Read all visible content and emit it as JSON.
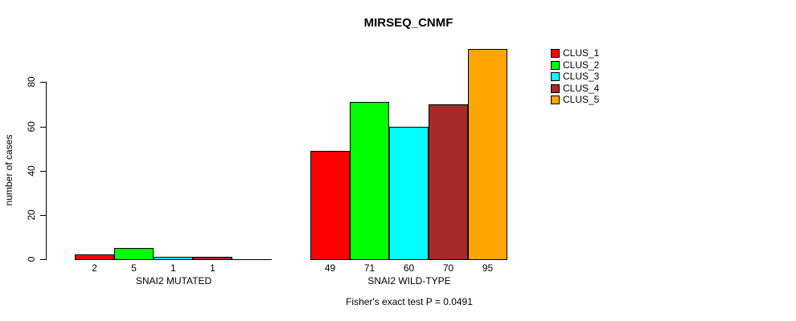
{
  "title": "MIRSEQ_CNMF",
  "y_axis_label": "number of cases",
  "footer_note": "Fisher's exact test P = 0.0491",
  "legend": {
    "position": "top-right",
    "items": [
      {
        "label": "CLUS_1",
        "color": "#FF0000"
      },
      {
        "label": "CLUS_2",
        "color": "#00FF00"
      },
      {
        "label": "CLUS_3",
        "color": "#00FFFF"
      },
      {
        "label": "CLUS_4",
        "color": "#A52A2A"
      },
      {
        "label": "CLUS_5",
        "color": "#FFA500"
      }
    ]
  },
  "chart_data": {
    "type": "bar",
    "title": "MIRSEQ_CNMF",
    "xlabel": "",
    "ylabel": "number of cases",
    "ylim": [
      0,
      95
    ],
    "yticks": [
      0,
      20,
      40,
      60,
      80
    ],
    "grid": false,
    "legend_position": "right-outside",
    "clusters": [
      "CLUS_1",
      "CLUS_2",
      "CLUS_3",
      "CLUS_4",
      "CLUS_5"
    ],
    "colors": [
      "#FF0000",
      "#00FF00",
      "#00FFFF",
      "#A52A2A",
      "#FFA500"
    ],
    "groups": [
      {
        "label": "SNAI2 MUTATED",
        "values": [
          2,
          5,
          1,
          1,
          0
        ],
        "bar_labels": [
          "2",
          "5",
          "1",
          "1",
          ""
        ]
      },
      {
        "label": "SNAI2 WILD-TYPE",
        "values": [
          49,
          71,
          60,
          70,
          95
        ],
        "bar_labels": [
          "49",
          "71",
          "60",
          "70",
          "95"
        ]
      }
    ],
    "annotation": "Fisher's exact test P = 0.0491"
  }
}
